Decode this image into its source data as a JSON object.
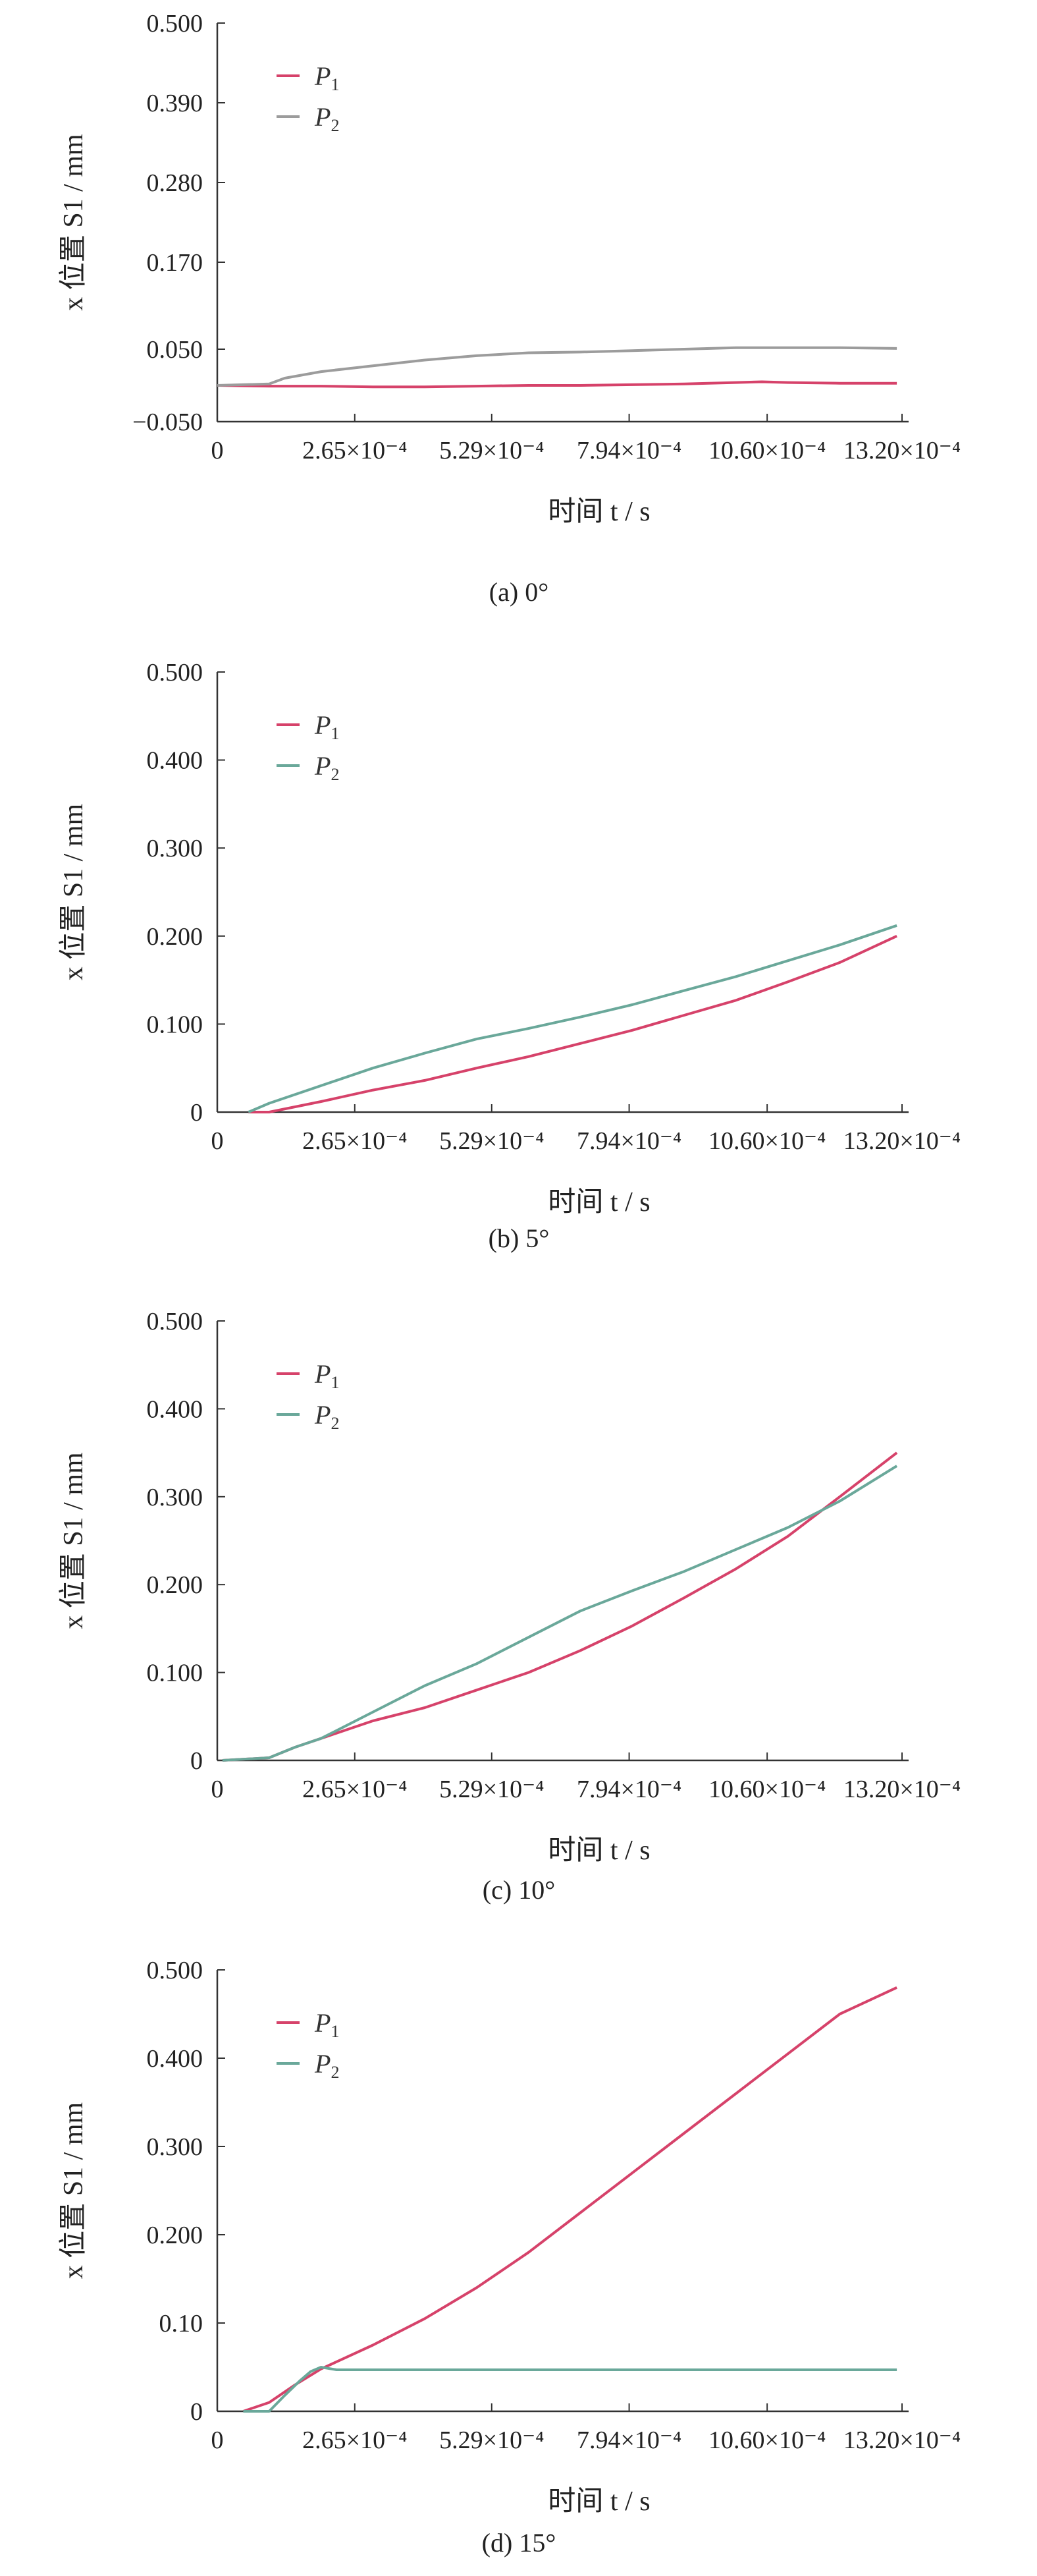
{
  "chart_data": [
    {
      "type": "line",
      "caption": "(a) 0°",
      "ylabel": "x 位置 S1 / mm",
      "xlabel": "时间 t / s",
      "ylim": [
        -0.05,
        0.5
      ],
      "yticks": [
        "0.500",
        "0.390",
        "0.280",
        "0.170",
        "0.050",
        "−0.050"
      ],
      "ytick_values": [
        0.5,
        0.39,
        0.28,
        0.17,
        0.05,
        -0.05
      ],
      "xlim": [
        0,
        0.00132
      ],
      "xticks": [
        "0",
        "2.65×10⁻⁴",
        "5.29×10⁻⁴",
        "7.94×10⁻⁴",
        "10.60×10⁻⁴",
        "13.20×10⁻⁴"
      ],
      "xtick_values": [
        0,
        0.000265,
        0.000529,
        0.000794,
        0.00106,
        0.00132
      ],
      "legend": [
        "P1",
        "P2"
      ],
      "legend_position": "top-left",
      "series": [
        {
          "name": "P1",
          "color": "#d6426a",
          "x": [
            0,
            0.0001,
            0.0002,
            0.0003,
            0.0004,
            0.0005,
            0.0006,
            0.0007,
            0.0008,
            0.0009,
            0.001,
            0.00105,
            0.0011,
            0.0012,
            0.00131
          ],
          "y": [
            0.0,
            -0.001,
            -0.001,
            -0.002,
            -0.002,
            -0.001,
            0.0,
            0.0,
            0.001,
            0.002,
            0.004,
            0.005,
            0.004,
            0.003,
            0.003
          ]
        },
        {
          "name": "P2",
          "color": "#9c9c9c",
          "x": [
            0,
            0.0001,
            0.00013,
            0.0002,
            0.0003,
            0.0004,
            0.0005,
            0.0006,
            0.0007,
            0.0008,
            0.0009,
            0.001,
            0.0011,
            0.0012,
            0.00131
          ],
          "y": [
            0.0,
            0.002,
            0.01,
            0.019,
            0.027,
            0.035,
            0.041,
            0.045,
            0.046,
            0.048,
            0.05,
            0.052,
            0.052,
            0.052,
            0.051
          ]
        }
      ]
    },
    {
      "type": "line",
      "caption": "(b) 5°",
      "ylabel": "x 位置 S1 / mm",
      "xlabel": "时间 t / s",
      "ylim": [
        0,
        0.5
      ],
      "yticks": [
        "0.500",
        "0.400",
        "0.300",
        "0.200",
        "0.100",
        "0"
      ],
      "ytick_values": [
        0.5,
        0.4,
        0.3,
        0.2,
        0.1,
        0
      ],
      "xlim": [
        0,
        0.00132
      ],
      "xticks": [
        "0",
        "2.65×10⁻⁴",
        "5.29×10⁻⁴",
        "7.94×10⁻⁴",
        "10.60×10⁻⁴",
        "13.20×10⁻⁴"
      ],
      "xtick_values": [
        0,
        0.000265,
        0.000529,
        0.000794,
        0.00106,
        0.00132
      ],
      "legend": [
        "P1",
        "P2"
      ],
      "legend_position": "top-left",
      "series": [
        {
          "name": "P1",
          "color": "#d6426a",
          "x": [
            6e-05,
            0.0001,
            0.0002,
            0.0003,
            0.0004,
            0.0005,
            0.0006,
            0.0007,
            0.0008,
            0.0009,
            0.001,
            0.0011,
            0.0012,
            0.00131
          ],
          "y": [
            0.0,
            0.0,
            0.012,
            0.025,
            0.036,
            0.05,
            0.063,
            0.078,
            0.093,
            0.11,
            0.127,
            0.148,
            0.17,
            0.2
          ]
        },
        {
          "name": "P2",
          "color": "#6aa89a",
          "x": [
            6e-05,
            0.0001,
            0.0002,
            0.0003,
            0.0004,
            0.0005,
            0.0006,
            0.0007,
            0.0008,
            0.0009,
            0.001,
            0.0011,
            0.0012,
            0.00131
          ],
          "y": [
            0.0,
            0.01,
            0.03,
            0.05,
            0.067,
            0.083,
            0.095,
            0.108,
            0.122,
            0.138,
            0.154,
            0.172,
            0.19,
            0.212
          ]
        }
      ]
    },
    {
      "type": "line",
      "caption": "(c) 10°",
      "ylabel": "x 位置 S1 / mm",
      "xlabel": "时间 t / s",
      "ylim": [
        0,
        0.5
      ],
      "yticks": [
        "0.500",
        "0.400",
        "0.300",
        "0.200",
        "0.100",
        "0"
      ],
      "ytick_values": [
        0.5,
        0.4,
        0.3,
        0.2,
        0.1,
        0
      ],
      "xlim": [
        0,
        0.00132
      ],
      "xticks": [
        "0",
        "2.65×10⁻⁴",
        "5.29×10⁻⁴",
        "7.94×10⁻⁴",
        "10.60×10⁻⁴",
        "13.20×10⁻⁴"
      ],
      "xtick_values": [
        0,
        0.000265,
        0.000529,
        0.000794,
        0.00106,
        0.00132
      ],
      "legend": [
        "P1",
        "P2"
      ],
      "legend_position": "top-left",
      "series": [
        {
          "name": "P1",
          "color": "#d6426a",
          "x": [
            1e-05,
            0.0001,
            0.00015,
            0.0002,
            0.0003,
            0.0004,
            0.0005,
            0.0006,
            0.0007,
            0.0008,
            0.0009,
            0.001,
            0.0011,
            0.0012,
            0.00131
          ],
          "y": [
            0.0,
            0.003,
            0.015,
            0.025,
            0.045,
            0.06,
            0.08,
            0.1,
            0.125,
            0.153,
            0.185,
            0.218,
            0.255,
            0.3,
            0.35
          ]
        },
        {
          "name": "P2",
          "color": "#6aa89a",
          "x": [
            1e-05,
            0.0001,
            0.00015,
            0.0002,
            0.0003,
            0.0004,
            0.0005,
            0.0006,
            0.0007,
            0.0008,
            0.0009,
            0.001,
            0.0011,
            0.0012,
            0.00131
          ],
          "y": [
            0.0,
            0.003,
            0.015,
            0.025,
            0.055,
            0.085,
            0.11,
            0.14,
            0.17,
            0.193,
            0.215,
            0.24,
            0.265,
            0.295,
            0.335
          ]
        }
      ]
    },
    {
      "type": "line",
      "caption": "(d) 15°",
      "ylabel": "x 位置 S1 / mm",
      "xlabel": "时间 t / s",
      "ylim": [
        0,
        0.5
      ],
      "yticks": [
        "0.500",
        "0.400",
        "0.300",
        "0.200",
        "0.10",
        "0"
      ],
      "ytick_values": [
        0.5,
        0.4,
        0.3,
        0.2,
        0.1,
        0
      ],
      "xlim": [
        0,
        0.00132
      ],
      "xticks": [
        "0",
        "2.65×10⁻⁴",
        "5.29×10⁻⁴",
        "7.94×10⁻⁴",
        "10.60×10⁻⁴",
        "13.20×10⁻⁴"
      ],
      "xtick_values": [
        0,
        0.000265,
        0.000529,
        0.000794,
        0.00106,
        0.00132
      ],
      "legend": [
        "P1",
        "P2"
      ],
      "legend_position": "top-left",
      "series": [
        {
          "name": "P1",
          "color": "#d6426a",
          "x": [
            5e-05,
            0.0001,
            0.00015,
            0.0002,
            0.0003,
            0.0004,
            0.0005,
            0.0006,
            0.0007,
            0.0008,
            0.0009,
            0.001,
            0.0011,
            0.0012,
            0.00131
          ],
          "y": [
            0.0,
            0.01,
            0.03,
            0.048,
            0.075,
            0.105,
            0.14,
            0.18,
            0.225,
            0.27,
            0.315,
            0.36,
            0.405,
            0.45,
            0.48
          ]
        },
        {
          "name": "P2",
          "color": "#6aa89a",
          "x": [
            5e-05,
            0.0001,
            0.00013,
            0.00016,
            0.00018,
            0.0002,
            0.00023,
            0.0003,
            0.0005,
            0.0008,
            0.001,
            0.0012,
            0.00131
          ],
          "y": [
            0.0,
            0.0,
            0.018,
            0.035,
            0.045,
            0.05,
            0.047,
            0.047,
            0.047,
            0.047,
            0.047,
            0.047,
            0.047
          ]
        }
      ]
    }
  ]
}
